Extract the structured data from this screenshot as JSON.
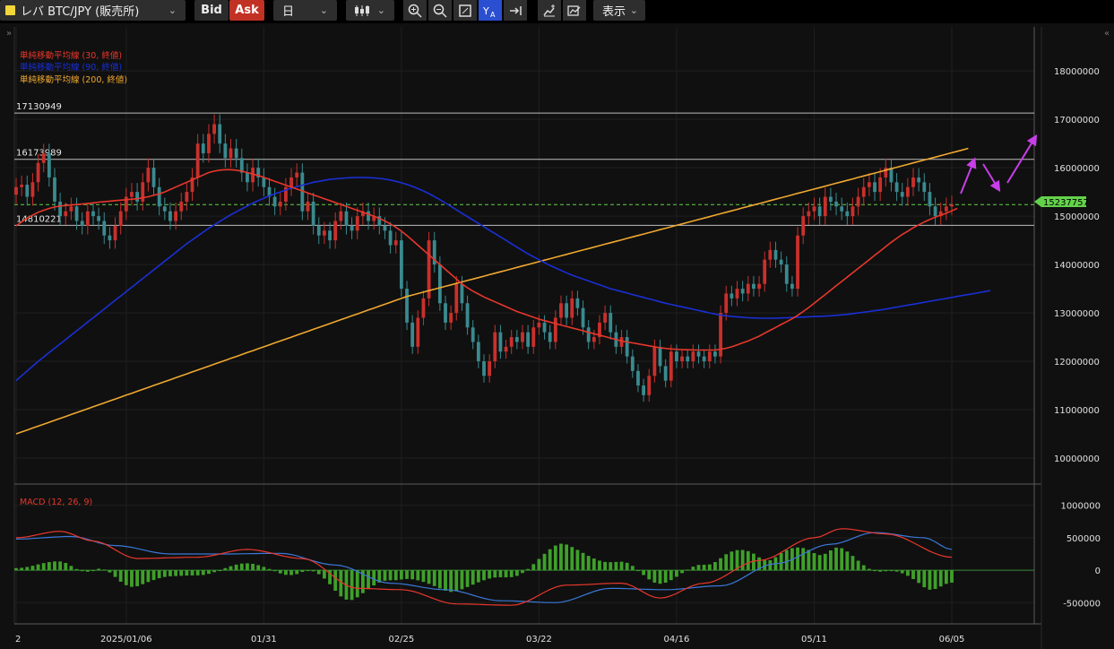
{
  "toolbar": {
    "symbol": "レバ BTC/JPY (販売所)",
    "bid_label": "Bid",
    "ask_label": "Ask",
    "period": "日",
    "show_label": "表示",
    "icons": [
      "candle-type-icon",
      "zoom-in-icon",
      "zoom-out-icon",
      "fit-icon",
      "auto-scale-icon",
      "scroll-end-icon",
      "add-indicator-icon",
      "draw-icon"
    ]
  },
  "legend": {
    "sma30": "単純移動平均線 (30, 終値)",
    "sma90": "単純移動平均線 (90, 終値)",
    "sma200": "単純移動平均線 (200, 終値)",
    "macd": "MACD (12, 26, 9)"
  },
  "horizontal_lines": [
    {
      "value": 17130949,
      "label": "17130949"
    },
    {
      "value": 16173989,
      "label": "16173989"
    },
    {
      "value": 14810221,
      "label": "14810221"
    }
  ],
  "current_price": {
    "value": 15237757,
    "label": "15237757"
  },
  "colors": {
    "up": "#c9302c",
    "down": "#3a8a8f",
    "sma30": "#e8372c",
    "sma90": "#1a2fd6",
    "sma200": "#f0a830",
    "price_tag": "#63d24a",
    "macd_line": "#e8372c",
    "signal_line": "#3a78d8",
    "histogram": "#3fa02a",
    "annotation": "#c83ee8"
  },
  "chart_data": [
    {
      "type": "candlestick",
      "ylim": [
        9500000,
        18800000
      ],
      "y_ticks": [
        10000000,
        11000000,
        12000000,
        13000000,
        14000000,
        15000000,
        16000000,
        17000000,
        18000000
      ],
      "y_tick_labels": [
        "10000000",
        "11000000",
        "12000000",
        "13000000",
        "14000000",
        "15000000",
        "16000000",
        "17000000",
        "18000000"
      ],
      "x_tick_labels": [
        "2",
        "2025/01/06",
        "01/31",
        "02/25",
        "03/22",
        "04/16",
        "05/11",
        "06/05"
      ],
      "x_tick_index": [
        0,
        20,
        45,
        70,
        95,
        120,
        145,
        170
      ],
      "closes": [
        15600000,
        15650000,
        15400000,
        15700000,
        16100000,
        16300000,
        15800000,
        15300000,
        15000000,
        15100000,
        15200000,
        14900000,
        14800000,
        15100000,
        15000000,
        14900000,
        14600000,
        14500000,
        14800000,
        15100000,
        15400000,
        15500000,
        15300000,
        15700000,
        16000000,
        15600000,
        15200000,
        15100000,
        14900000,
        15100000,
        15300000,
        15500000,
        15800000,
        16500000,
        16300000,
        16700000,
        16900000,
        16500000,
        16200000,
        16400000,
        16200000,
        15900000,
        15700000,
        16000000,
        15800000,
        15600000,
        15400000,
        15200000,
        15300000,
        15600000,
        15800000,
        15900000,
        15100000,
        15300000,
        14800000,
        14600000,
        14700000,
        14500000,
        14900000,
        15100000,
        14800000,
        14700000,
        15000000,
        15100000,
        14900000,
        15000000,
        14800000,
        14700000,
        14400000,
        14500000,
        13500000,
        12800000,
        12300000,
        12900000,
        13300000,
        14500000,
        14000000,
        13200000,
        12800000,
        13000000,
        13600000,
        13200000,
        12700000,
        12400000,
        12000000,
        11700000,
        12000000,
        12600000,
        12200000,
        12300000,
        12500000,
        12400000,
        12600000,
        12300000,
        12700000,
        12800000,
        12600000,
        12400000,
        12900000,
        13200000,
        12900000,
        13300000,
        13100000,
        12700000,
        12400000,
        12500000,
        12800000,
        13000000,
        12600000,
        12300000,
        12500000,
        12100000,
        11800000,
        11500000,
        11300000,
        11700000,
        12300000,
        11900000,
        11600000,
        12200000,
        12000000,
        12100000,
        12000000,
        12200000,
        12100000,
        12000000,
        12200000,
        12100000,
        13000000,
        13400000,
        13300000,
        13500000,
        13400000,
        13600000,
        13500000,
        13600000,
        14100000,
        14300000,
        14100000,
        14000000,
        13600000,
        13500000,
        14600000,
        15000000,
        15100000,
        15200000,
        15000000,
        15400000,
        15300000,
        15200000,
        15100000,
        15000000,
        15200000,
        15400000,
        15600000,
        15700000,
        15500000,
        15800000,
        16000000,
        15700000,
        15500000,
        15400000,
        15600000,
        15800000,
        15700000,
        15500000,
        15200000,
        15000000,
        15100000,
        15200000,
        15237757
      ],
      "sma30": [
        14800000,
        14880000,
        14960000,
        15020000,
        15080000,
        15120000,
        15160000,
        15190000,
        15210000,
        15220000,
        15230000,
        15240000,
        15250000,
        15260000,
        15275000,
        15290000,
        15300000,
        15310000,
        15320000,
        15330000,
        15340000,
        15350000,
        15360000,
        15380000,
        15400000,
        15430000,
        15460000,
        15500000,
        15550000,
        15600000,
        15650000,
        15700000,
        15750000,
        15800000,
        15850000,
        15900000,
        15930000,
        15950000,
        15960000,
        15960000,
        15950000,
        15930000,
        15900000,
        15870000,
        15840000,
        15800000,
        15760000,
        15720000,
        15680000,
        15640000,
        15600000,
        15560000,
        15520000,
        15480000,
        15440000,
        15400000,
        15360000,
        15320000,
        15280000,
        15240000,
        15200000,
        15160000,
        15120000,
        15080000,
        15040000,
        15000000,
        14950000,
        14900000,
        14840000,
        14770000,
        14690000,
        14600000,
        14500000,
        14400000,
        14300000,
        14200000,
        14100000,
        14000000,
        13900000,
        13800000,
        13700000,
        13600000,
        13520000,
        13450000,
        13390000,
        13330000,
        13280000,
        13230000,
        13180000,
        13130000,
        13080000,
        13030000,
        12990000,
        12950000,
        12910000,
        12870000,
        12840000,
        12810000,
        12780000,
        12750000,
        12720000,
        12690000,
        12660000,
        12630000,
        12600000,
        12570000,
        12540000,
        12510000,
        12480000,
        12450000,
        12420000,
        12400000,
        12380000,
        12360000,
        12340000,
        12320000,
        12300000,
        12280000,
        12265000,
        12255000,
        12248000,
        12242000,
        12238000,
        12235000,
        12233000,
        12232000,
        12232000,
        12233000,
        12250000,
        12270000,
        12300000,
        12340000,
        12380000,
        12420000,
        12470000,
        12520000,
        12580000,
        12640000,
        12700000,
        12760000,
        12820000,
        12880000,
        12950000,
        13030000,
        13110000,
        13200000,
        13290000,
        13380000,
        13470000,
        13560000,
        13650000,
        13740000,
        13830000,
        13920000,
        14010000,
        14100000,
        14190000,
        14280000,
        14370000,
        14460000,
        14540000,
        14620000,
        14690000,
        14760000,
        14820000,
        14880000,
        14930000,
        14980000,
        15020000,
        15060000,
        15110000,
        15160000
      ],
      "sma90": [
        11600000,
        11700000,
        11800000,
        11900000,
        12000000,
        12090000,
        12180000,
        12270000,
        12360000,
        12450000,
        12540000,
        12630000,
        12720000,
        12810000,
        12900000,
        12990000,
        13080000,
        13170000,
        13260000,
        13350000,
        13440000,
        13530000,
        13620000,
        13710000,
        13800000,
        13890000,
        13980000,
        14070000,
        14160000,
        14250000,
        14340000,
        14430000,
        14510000,
        14590000,
        14670000,
        14750000,
        14820000,
        14890000,
        14960000,
        15030000,
        15090000,
        15150000,
        15210000,
        15270000,
        15320000,
        15370000,
        15420000,
        15460000,
        15500000,
        15540000,
        15580000,
        15610000,
        15640000,
        15670000,
        15700000,
        15720000,
        15740000,
        15760000,
        15770000,
        15780000,
        15790000,
        15795000,
        15798000,
        15798000,
        15796000,
        15790000,
        15780000,
        15765000,
        15745000,
        15720000,
        15690000,
        15655000,
        15615000,
        15570000,
        15520000,
        15465000,
        15405000,
        15340000,
        15270000,
        15200000,
        15130000,
        15060000,
        14990000,
        14920000,
        14850000,
        14780000,
        14710000,
        14640000,
        14570000,
        14500000,
        14430000,
        14360000,
        14290000,
        14220000,
        14160000,
        14100000,
        14040000,
        13980000,
        13930000,
        13880000,
        13830000,
        13780000,
        13740000,
        13700000,
        13660000,
        13620000,
        13580000,
        13540000,
        13500000,
        13470000,
        13440000,
        13410000,
        13380000,
        13350000,
        13320000,
        13290000,
        13260000,
        13230000,
        13200000,
        13175000,
        13150000,
        13125000,
        13100000,
        13075000,
        13050000,
        13025000,
        13000000,
        12975000,
        12955000,
        12940000,
        12930000,
        12920000,
        12910000,
        12900000,
        12895000,
        12890000,
        12890000,
        12890000,
        12892000,
        12895000,
        12900000,
        12905000,
        12910000,
        12915000,
        12920000,
        12925000,
        12930000,
        12935000,
        12940000,
        12950000,
        12960000,
        12970000,
        12985000,
        13000000,
        13015000,
        13030000,
        13045000,
        13060000,
        13080000,
        13100000,
        13120000,
        13140000,
        13160000,
        13180000,
        13200000,
        13220000,
        13240000,
        13260000,
        13280000,
        13300000,
        13320000,
        13340000,
        13360000,
        13380000,
        13400000,
        13420000,
        13440000,
        13460000
      ],
      "sma200": [
        10500000,
        10540000,
        10580000,
        10620000,
        10660000,
        10700000,
        10740000,
        10780000,
        10820000,
        10860000,
        10900000,
        10940000,
        10980000,
        11020000,
        11060000,
        11100000,
        11140000,
        11180000,
        11220000,
        11260000,
        11300000,
        11340000,
        11380000,
        11420000,
        11460000,
        11500000,
        11540000,
        11580000,
        11620000,
        11660000,
        11700000,
        11740000,
        11780000,
        11820000,
        11860000,
        11900000,
        11940000,
        11980000,
        12020000,
        12060000,
        12100000,
        12140000,
        12180000,
        12220000,
        12260000,
        12300000,
        12340000,
        12380000,
        12420000,
        12460000,
        12500000,
        12540000,
        12580000,
        12620000,
        12660000,
        12700000,
        12740000,
        12780000,
        12820000,
        12860000,
        12900000,
        12940000,
        12980000,
        13020000,
        13060000,
        13100000,
        13140000,
        13180000,
        13220000,
        13260000,
        13300000,
        13340000,
        13370000,
        13400000,
        13430000,
        13460000,
        13490000,
        13520000,
        13550000,
        13580000,
        13610000,
        13640000,
        13670000,
        13700000,
        13730000,
        13760000,
        13790000,
        13820000,
        13850000,
        13880000,
        13910000,
        13940000,
        13970000,
        14000000,
        14030000,
        14060000,
        14090000,
        14120000,
        14150000,
        14180000,
        14210000,
        14240000,
        14270000,
        14300000,
        14330000,
        14360000,
        14390000,
        14420000,
        14450000,
        14480000,
        14510000,
        14540000,
        14570000,
        14600000,
        14630000,
        14660000,
        14690000,
        14720000,
        14750000,
        14780000,
        14810000,
        14840000,
        14870000,
        14900000,
        14930000,
        14960000,
        14990000,
        15020000,
        15050000,
        15080000,
        15110000,
        15140000,
        15170000,
        15200000,
        15230000,
        15260000,
        15290000,
        15320000,
        15350000,
        15380000,
        15410000,
        15440000,
        15470000,
        15500000,
        15530000,
        15560000,
        15590000,
        15620000,
        15650000,
        15680000,
        15710000,
        15740000,
        15770000,
        15800000,
        15830000,
        15860000,
        15890000,
        15920000,
        15950000,
        15980000,
        16010000,
        16040000,
        16070000,
        16100000,
        16130000,
        16160000,
        16190000,
        16220000,
        16250000,
        16280000,
        16310000,
        16340000,
        16370000,
        16400000
      ]
    },
    {
      "type": "bar",
      "ylim": [
        -800000,
        1300000
      ],
      "y_ticks": [
        -500000,
        0,
        500000,
        1000000
      ],
      "y_tick_labels": [
        "-500000",
        "0",
        "500000",
        "1000000"
      ],
      "macd_key_index": [
        0,
        8,
        14,
        22,
        33,
        42,
        52,
        62,
        70,
        80,
        90,
        100,
        110,
        117,
        125,
        135,
        145,
        150,
        158,
        170
      ],
      "macd_key": [
        500000,
        600000,
        450000,
        180000,
        200000,
        320000,
        180000,
        -280000,
        -300000,
        -520000,
        -540000,
        -230000,
        -200000,
        -430000,
        -200000,
        150000,
        500000,
        640000,
        560000,
        200000
      ],
      "signal_key_index": [
        0,
        10,
        18,
        28,
        38,
        48,
        58,
        68,
        78,
        88,
        98,
        108,
        118,
        128,
        138,
        148,
        156,
        165,
        170
      ],
      "signal_key": [
        480000,
        520000,
        380000,
        250000,
        250000,
        260000,
        80000,
        -200000,
        -300000,
        -470000,
        -500000,
        -280000,
        -300000,
        -240000,
        100000,
        400000,
        580000,
        500000,
        320000
      ]
    }
  ]
}
